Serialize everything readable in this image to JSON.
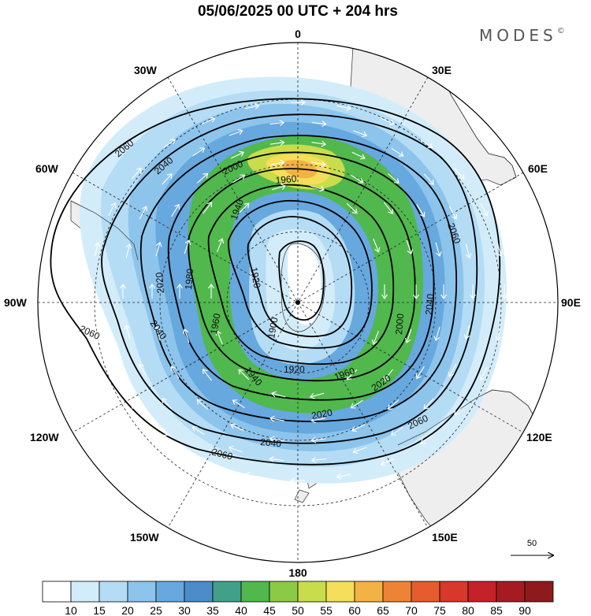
{
  "header": {
    "title": "05/06/2025  00 UTC  + 204 hrs",
    "brand": "MODES",
    "brand_mark": "©"
  },
  "map": {
    "projection": "south-polar-stereographic",
    "grid": true,
    "lon_labels": [
      "0",
      "30E",
      "60E",
      "90E",
      "120E",
      "150E",
      "180",
      "150W",
      "120W",
      "90W",
      "60W",
      "30W"
    ],
    "contour_labels": [
      "2060",
      "2040",
      "2000",
      "1960",
      "1940",
      "1920",
      "1980",
      "2020",
      "1900"
    ],
    "land_color": "#eeeeee",
    "contour_color": "#000000",
    "wind_arrow_color": "#ffffff",
    "reference_vector": {
      "value": "50"
    }
  },
  "colorbar": {
    "labels": [
      "10",
      "15",
      "20",
      "25",
      "30",
      "35",
      "40",
      "45",
      "50",
      "55",
      "60",
      "65",
      "70",
      "75",
      "80",
      "85",
      "90"
    ],
    "colors": [
      "#ffffff",
      "#d3ecfa",
      "#b4dcf5",
      "#8cc4ec",
      "#67a8de",
      "#4b8cc9",
      "#41a088",
      "#50b84d",
      "#8cca46",
      "#c9dc4c",
      "#f4de5a",
      "#f3b244",
      "#ef8335",
      "#e65c2e",
      "#d8372c",
      "#c42129",
      "#a61b22",
      "#8e1a1d"
    ]
  }
}
